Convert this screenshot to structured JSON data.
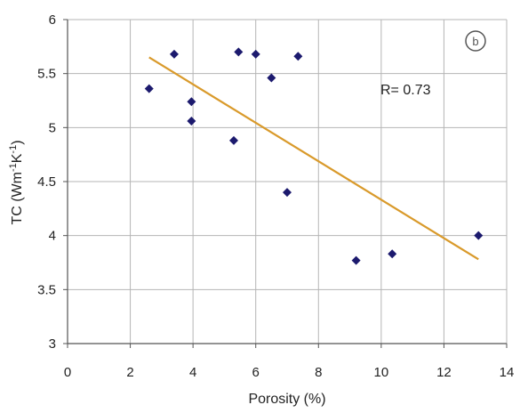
{
  "chart_data": {
    "type": "scatter",
    "title": "",
    "xlabel": "Porosity (%)",
    "ylabel_main": "TC (Wm",
    "ylabel_sup1": "-1",
    "ylabel_mid": "K",
    "ylabel_sup2": "-1",
    "ylabel_end": ")",
    "xlim": [
      0,
      14
    ],
    "ylim": [
      3,
      6
    ],
    "xticks": [
      0,
      2,
      4,
      6,
      8,
      10,
      12,
      14
    ],
    "yticks": [
      3,
      3.5,
      4,
      4.5,
      5,
      5.5,
      6
    ],
    "xtick_labels": [
      "0",
      "2",
      "4",
      "6",
      "8",
      "10",
      "12",
      "14"
    ],
    "ytick_labels": [
      "3",
      "3.5",
      "4",
      "4.5",
      "5",
      "5.5",
      "6"
    ],
    "grid": true,
    "points": [
      {
        "x": 2.6,
        "y": 5.36
      },
      {
        "x": 3.4,
        "y": 5.68
      },
      {
        "x": 3.95,
        "y": 5.24
      },
      {
        "x": 3.95,
        "y": 5.06
      },
      {
        "x": 5.3,
        "y": 4.88
      },
      {
        "x": 5.45,
        "y": 5.7
      },
      {
        "x": 6.0,
        "y": 5.68
      },
      {
        "x": 6.5,
        "y": 5.46
      },
      {
        "x": 7.0,
        "y": 4.4
      },
      {
        "x": 7.35,
        "y": 5.66
      },
      {
        "x": 9.2,
        "y": 3.77
      },
      {
        "x": 10.35,
        "y": 3.83
      },
      {
        "x": 13.1,
        "y": 4.0
      }
    ],
    "trendline": {
      "x": [
        2.6,
        13.1
      ],
      "y": [
        5.65,
        3.78
      ]
    },
    "annotation": "R= 0.73",
    "badge": "b",
    "colors": {
      "points": "#1c1a6e",
      "trendline": "#d99a2b",
      "grid": "#b5b5b5",
      "badge": "#555555"
    }
  }
}
